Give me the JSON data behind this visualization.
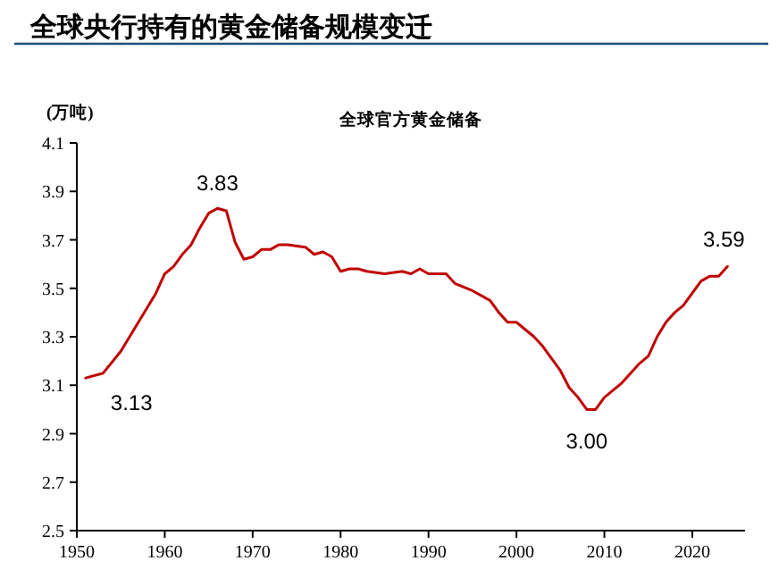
{
  "chart_data": {
    "type": "line",
    "title": "全球央行持有的黄金储备规模变迁",
    "subtitle": "全球官方黄金储备",
    "ylabel": "(万吨)",
    "x": [
      1951,
      1953,
      1955,
      1957,
      1959,
      1960,
      1961,
      1962,
      1963,
      1964,
      1965,
      1966,
      1967,
      1968,
      1969,
      1970,
      1971,
      1972,
      1973,
      1974,
      1976,
      1977,
      1978,
      1979,
      1980,
      1981,
      1982,
      1983,
      1985,
      1987,
      1988,
      1989,
      1990,
      1992,
      1993,
      1995,
      1997,
      1998,
      1999,
      2000,
      2002,
      2003,
      2004,
      2005,
      2006,
      2007,
      2008,
      2009,
      2010,
      2012,
      2014,
      2015,
      2016,
      2017,
      2018,
      2019,
      2020,
      2021,
      2022,
      2023,
      2024
    ],
    "series": [
      {
        "color": "#c00000",
        "values": [
          3.13,
          3.15,
          3.24,
          3.36,
          3.48,
          3.56,
          3.59,
          3.64,
          3.68,
          3.75,
          3.81,
          3.83,
          3.82,
          3.69,
          3.62,
          3.63,
          3.66,
          3.66,
          3.68,
          3.68,
          3.67,
          3.64,
          3.65,
          3.63,
          3.57,
          3.58,
          3.58,
          3.57,
          3.56,
          3.57,
          3.56,
          3.58,
          3.56,
          3.56,
          3.52,
          3.49,
          3.45,
          3.4,
          3.36,
          3.36,
          3.3,
          3.26,
          3.21,
          3.16,
          3.09,
          3.05,
          3.0,
          3.0,
          3.05,
          3.11,
          3.19,
          3.22,
          3.3,
          3.36,
          3.4,
          3.43,
          3.48,
          3.53,
          3.55,
          3.55,
          3.59
        ]
      }
    ],
    "xlim": [
      1950,
      2026
    ],
    "xticks": [
      1950,
      1960,
      1970,
      1980,
      1990,
      2000,
      2010,
      2020
    ],
    "ylim": [
      2.5,
      4.1
    ],
    "yticks": [
      {
        "value": 2.5,
        "label": "2.5"
      },
      {
        "value": 2.7,
        "label": "2.7"
      },
      {
        "value": 2.9,
        "label": "2.9"
      },
      {
        "value": 3.1,
        "label": "3.1"
      },
      {
        "value": 3.3,
        "label": "3.3"
      },
      {
        "value": 3.5,
        "label": "3.5"
      },
      {
        "value": 3.7,
        "label": "3.7"
      },
      {
        "value": 3.9,
        "label": "3.9"
      },
      {
        "value": 4.1,
        "label": "4.1"
      }
    ],
    "grid": false,
    "marker": "none",
    "line_style": "solid",
    "annotations": [
      {
        "text": "3.13",
        "x": 1951,
        "y": 3.13
      },
      {
        "text": "3.83",
        "x": 1966,
        "y": 3.83
      },
      {
        "text": "3.00",
        "x": 2008,
        "y": 3.0
      },
      {
        "text": "3.59",
        "x": 2024,
        "y": 3.59
      }
    ]
  }
}
